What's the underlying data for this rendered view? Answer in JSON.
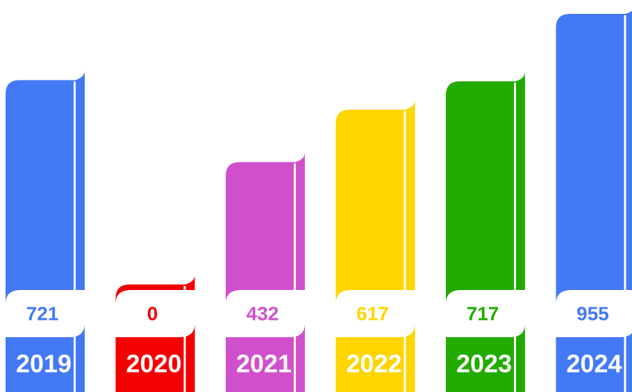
{
  "chart_data": {
    "type": "bar",
    "categories": [
      "2019",
      "2020",
      "2021",
      "2022",
      "2023",
      "2024"
    ],
    "values": [
      721,
      0,
      432,
      617,
      717,
      955
    ],
    "colors": [
      "#4479f6",
      "#f40000",
      "#d050cc",
      "#fed500",
      "#22ab00",
      "#4479f6"
    ]
  }
}
